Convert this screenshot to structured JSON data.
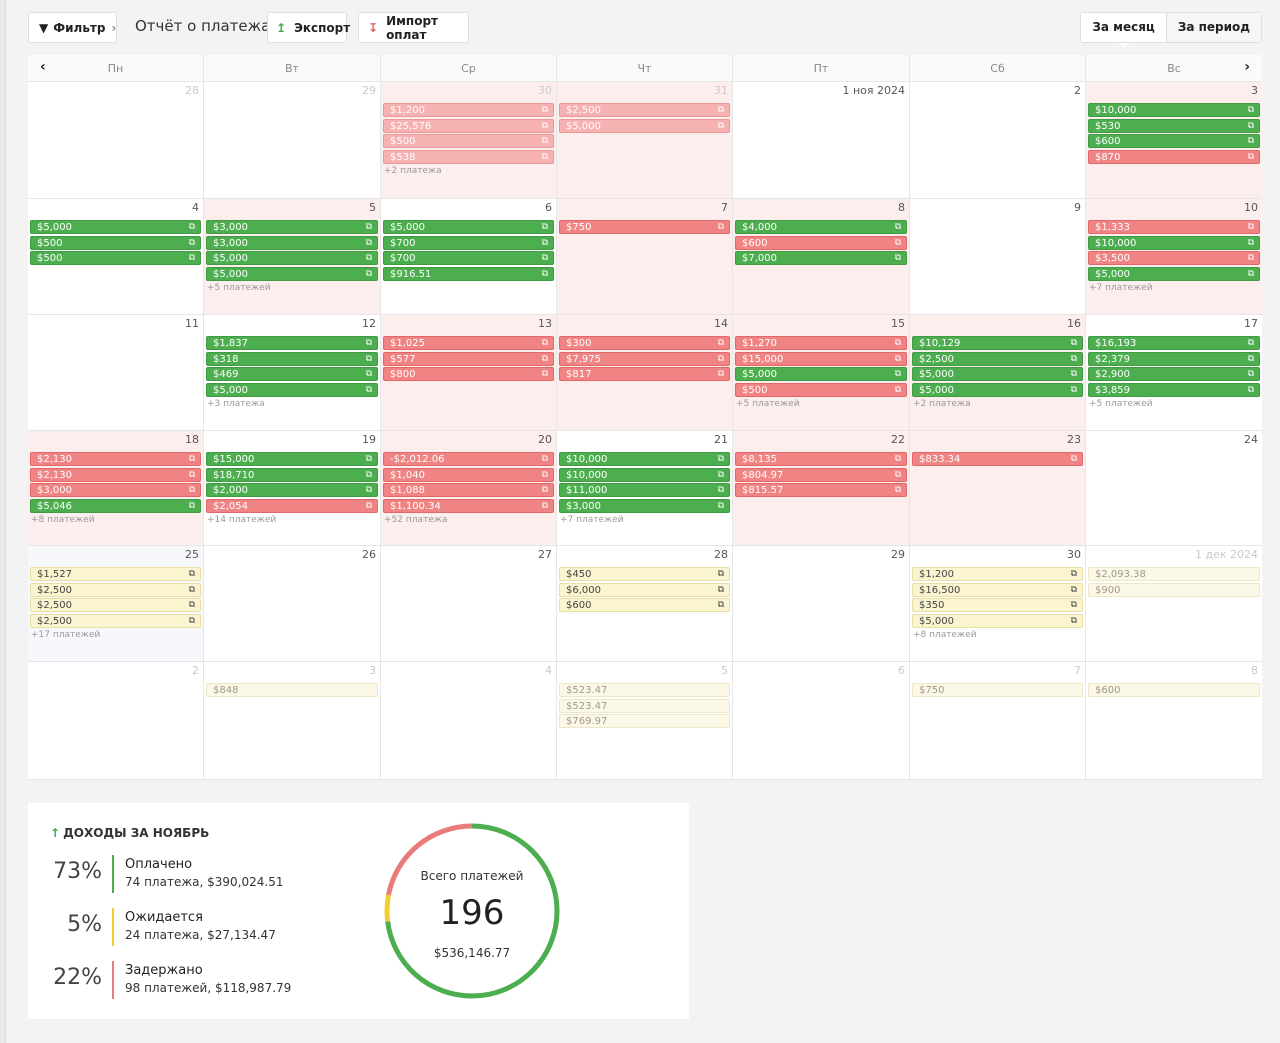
{
  "toolbar": {
    "filter_label": "Фильтр",
    "title": "Отчёт о платежах",
    "export_label": "Экспорт",
    "import_label": "Импорт оплат",
    "view_month": "За месяц",
    "view_period": "За период"
  },
  "weekdays": [
    "Пн",
    "Вт",
    "Ср",
    "Чт",
    "Пт",
    "Сб",
    "Вс"
  ],
  "weeks": [
    [
      {
        "label": "28",
        "muted": true,
        "bg": "",
        "pills": [],
        "more": ""
      },
      {
        "label": "29",
        "muted": true,
        "bg": "",
        "pills": [],
        "more": ""
      },
      {
        "label": "30",
        "muted": true,
        "bg": "tint",
        "pills": [
          {
            "t": "$1,200",
            "c": "lred"
          },
          {
            "t": "$25,576",
            "c": "lred"
          },
          {
            "t": "$500",
            "c": "lred"
          },
          {
            "t": "$538",
            "c": "lred"
          }
        ],
        "more": "+2 платежа"
      },
      {
        "label": "31",
        "muted": true,
        "bg": "tint",
        "pills": [
          {
            "t": "$2,500",
            "c": "lred"
          },
          {
            "t": "$5,000",
            "c": "lred"
          }
        ],
        "more": ""
      },
      {
        "label": "1 ноя 2024",
        "muted": false,
        "bg": "",
        "pills": [],
        "more": ""
      },
      {
        "label": "2",
        "muted": false,
        "bg": "",
        "pills": [],
        "more": ""
      },
      {
        "label": "3",
        "muted": false,
        "bg": "tint",
        "pills": [
          {
            "t": "$10,000",
            "c": "green"
          },
          {
            "t": "$530",
            "c": "green"
          },
          {
            "t": "$600",
            "c": "green"
          },
          {
            "t": "$870",
            "c": "red"
          }
        ],
        "more": ""
      }
    ],
    [
      {
        "label": "4",
        "muted": false,
        "bg": "",
        "pills": [
          {
            "t": "$5,000",
            "c": "green"
          },
          {
            "t": "$500",
            "c": "green"
          },
          {
            "t": "$500",
            "c": "green"
          }
        ],
        "more": ""
      },
      {
        "label": "5",
        "muted": false,
        "bg": "tint",
        "pills": [
          {
            "t": "$3,000",
            "c": "green"
          },
          {
            "t": "$3,000",
            "c": "green"
          },
          {
            "t": "$5,000",
            "c": "green"
          },
          {
            "t": "$5,000",
            "c": "green"
          }
        ],
        "more": "+5 платежей"
      },
      {
        "label": "6",
        "muted": false,
        "bg": "",
        "pills": [
          {
            "t": "$5,000",
            "c": "green"
          },
          {
            "t": "$700",
            "c": "green"
          },
          {
            "t": "$700",
            "c": "green"
          },
          {
            "t": "$916.51",
            "c": "green"
          }
        ],
        "more": ""
      },
      {
        "label": "7",
        "muted": false,
        "bg": "tint",
        "pills": [
          {
            "t": "$750",
            "c": "red"
          }
        ],
        "more": ""
      },
      {
        "label": "8",
        "muted": false,
        "bg": "tint",
        "pills": [
          {
            "t": "$4,000",
            "c": "green"
          },
          {
            "t": "$600",
            "c": "red"
          },
          {
            "t": "$7,000",
            "c": "green"
          }
        ],
        "more": ""
      },
      {
        "label": "9",
        "muted": false,
        "bg": "",
        "pills": [],
        "more": ""
      },
      {
        "label": "10",
        "muted": false,
        "bg": "tint",
        "pills": [
          {
            "t": "$1,333",
            "c": "red"
          },
          {
            "t": "$10,000",
            "c": "green"
          },
          {
            "t": "$3,500",
            "c": "red"
          },
          {
            "t": "$5,000",
            "c": "green"
          }
        ],
        "more": "+7 платежей"
      }
    ],
    [
      {
        "label": "11",
        "muted": false,
        "bg": "",
        "pills": [],
        "more": ""
      },
      {
        "label": "12",
        "muted": false,
        "bg": "",
        "pills": [
          {
            "t": "$1,837",
            "c": "green"
          },
          {
            "t": "$318",
            "c": "green"
          },
          {
            "t": "$469",
            "c": "green"
          },
          {
            "t": "$5,000",
            "c": "green"
          }
        ],
        "more": "+3 платежа"
      },
      {
        "label": "13",
        "muted": false,
        "bg": "tint",
        "pills": [
          {
            "t": "$1,025",
            "c": "red"
          },
          {
            "t": "$577",
            "c": "red"
          },
          {
            "t": "$800",
            "c": "red"
          }
        ],
        "more": ""
      },
      {
        "label": "14",
        "muted": false,
        "bg": "tint",
        "pills": [
          {
            "t": "$300",
            "c": "red"
          },
          {
            "t": "$7,975",
            "c": "red"
          },
          {
            "t": "$817",
            "c": "red"
          }
        ],
        "more": ""
      },
      {
        "label": "15",
        "muted": false,
        "bg": "tint",
        "pills": [
          {
            "t": "$1,270",
            "c": "red"
          },
          {
            "t": "$15,000",
            "c": "red"
          },
          {
            "t": "$5,000",
            "c": "green"
          },
          {
            "t": "$500",
            "c": "red"
          }
        ],
        "more": "+5 платежей"
      },
      {
        "label": "16",
        "muted": false,
        "bg": "tint",
        "pills": [
          {
            "t": "$10,129",
            "c": "green"
          },
          {
            "t": "$2,500",
            "c": "green"
          },
          {
            "t": "$5,000",
            "c": "green"
          },
          {
            "t": "$5,000",
            "c": "green"
          }
        ],
        "more": "+2 платежа"
      },
      {
        "label": "17",
        "muted": false,
        "bg": "",
        "pills": [
          {
            "t": "$16,193",
            "c": "green"
          },
          {
            "t": "$2,379",
            "c": "green"
          },
          {
            "t": "$2,900",
            "c": "green"
          },
          {
            "t": "$3,859",
            "c": "green"
          }
        ],
        "more": "+5 платежей"
      }
    ],
    [
      {
        "label": "18",
        "muted": false,
        "bg": "tint",
        "pills": [
          {
            "t": "$2,130",
            "c": "red"
          },
          {
            "t": "$2,130",
            "c": "red"
          },
          {
            "t": "$3,000",
            "c": "red"
          },
          {
            "t": "$5,046",
            "c": "green"
          }
        ],
        "more": "+8 платежей"
      },
      {
        "label": "19",
        "muted": false,
        "bg": "",
        "pills": [
          {
            "t": "$15,000",
            "c": "green"
          },
          {
            "t": "$18,710",
            "c": "green"
          },
          {
            "t": "$2,000",
            "c": "green"
          },
          {
            "t": "$2,054",
            "c": "red"
          }
        ],
        "more": "+14 платежей"
      },
      {
        "label": "20",
        "muted": false,
        "bg": "tint",
        "pills": [
          {
            "t": "-$2,012.06",
            "c": "red"
          },
          {
            "t": "$1,040",
            "c": "red"
          },
          {
            "t": "$1,088",
            "c": "red"
          },
          {
            "t": "$1,100.34",
            "c": "red"
          }
        ],
        "more": "+52 платежа"
      },
      {
        "label": "21",
        "muted": false,
        "bg": "",
        "pills": [
          {
            "t": "$10,000",
            "c": "green"
          },
          {
            "t": "$10,000",
            "c": "green"
          },
          {
            "t": "$11,000",
            "c": "green"
          },
          {
            "t": "$3,000",
            "c": "green"
          }
        ],
        "more": "+7 платежей"
      },
      {
        "label": "22",
        "muted": false,
        "bg": "tint",
        "pills": [
          {
            "t": "$8,135",
            "c": "red"
          },
          {
            "t": "$804.97",
            "c": "red"
          },
          {
            "t": "$815.57",
            "c": "red"
          }
        ],
        "more": ""
      },
      {
        "label": "23",
        "muted": false,
        "bg": "tint",
        "pills": [
          {
            "t": "$833.34",
            "c": "red"
          }
        ],
        "more": ""
      },
      {
        "label": "24",
        "muted": false,
        "bg": "",
        "pills": [],
        "more": ""
      }
    ],
    [
      {
        "label": "25",
        "muted": false,
        "bg": "today",
        "pills": [
          {
            "t": "$1,527",
            "c": "yellow"
          },
          {
            "t": "$2,500",
            "c": "yellow"
          },
          {
            "t": "$2,500",
            "c": "yellow"
          },
          {
            "t": "$2,500",
            "c": "yellow"
          }
        ],
        "more": "+17 платежей"
      },
      {
        "label": "26",
        "muted": false,
        "bg": "",
        "pills": [],
        "more": ""
      },
      {
        "label": "27",
        "muted": false,
        "bg": "",
        "pills": [],
        "more": ""
      },
      {
        "label": "28",
        "muted": false,
        "bg": "",
        "pills": [
          {
            "t": "$450",
            "c": "yellow"
          },
          {
            "t": "$6,000",
            "c": "yellow"
          },
          {
            "t": "$600",
            "c": "yellow"
          }
        ],
        "more": ""
      },
      {
        "label": "29",
        "muted": false,
        "bg": "",
        "pills": [],
        "more": ""
      },
      {
        "label": "30",
        "muted": false,
        "bg": "",
        "pills": [
          {
            "t": "$1,200",
            "c": "yellow"
          },
          {
            "t": "$16,500",
            "c": "yellow"
          },
          {
            "t": "$350",
            "c": "yellow"
          },
          {
            "t": "$5,000",
            "c": "yellow"
          }
        ],
        "more": "+8 платежей"
      },
      {
        "label": "1 дек 2024",
        "muted": true,
        "bg": "",
        "pills": [
          {
            "t": "$2,093.38",
            "c": "lyellow"
          },
          {
            "t": "$900",
            "c": "lyellow"
          }
        ],
        "more": ""
      }
    ],
    [
      {
        "label": "2",
        "muted": true,
        "bg": "",
        "pills": [],
        "more": ""
      },
      {
        "label": "3",
        "muted": true,
        "bg": "",
        "pills": [
          {
            "t": "$848",
            "c": "lyellow"
          }
        ],
        "more": ""
      },
      {
        "label": "4",
        "muted": true,
        "bg": "",
        "pills": [],
        "more": ""
      },
      {
        "label": "5",
        "muted": true,
        "bg": "",
        "pills": [
          {
            "t": "$523.47",
            "c": "lyellow"
          },
          {
            "t": "$523.47",
            "c": "lyellow"
          },
          {
            "t": "$769.97",
            "c": "lyellow"
          }
        ],
        "more": ""
      },
      {
        "label": "6",
        "muted": true,
        "bg": "",
        "pills": [],
        "more": ""
      },
      {
        "label": "7",
        "muted": true,
        "bg": "",
        "pills": [
          {
            "t": "$750",
            "c": "lyellow"
          }
        ],
        "more": ""
      },
      {
        "label": "8",
        "muted": true,
        "bg": "",
        "pills": [
          {
            "t": "$600",
            "c": "lyellow"
          }
        ],
        "more": ""
      }
    ]
  ],
  "summary": {
    "title": "ДОХОДЫ ЗА НОЯБРЬ",
    "stats": [
      {
        "pct": "73%",
        "label": "Оплачено",
        "sub": "74 платежа, $390,024.51",
        "color": "#4cae4f"
      },
      {
        "pct": "5%",
        "label": "Ожидается",
        "sub": "24 платежа, $27,134.47",
        "color": "#f2cd2e"
      },
      {
        "pct": "22%",
        "label": "Задержано",
        "sub": "98 платежей, $118,987.79",
        "color": "#ea7b7b"
      }
    ],
    "donut": {
      "label": "Всего платежей",
      "count": "196",
      "amount": "$536,146.77",
      "segments": [
        {
          "value": 73,
          "color": "#4cae4f"
        },
        {
          "value": 5,
          "color": "#f2cd2e"
        },
        {
          "value": 22,
          "color": "#ea7b7b"
        }
      ]
    }
  }
}
